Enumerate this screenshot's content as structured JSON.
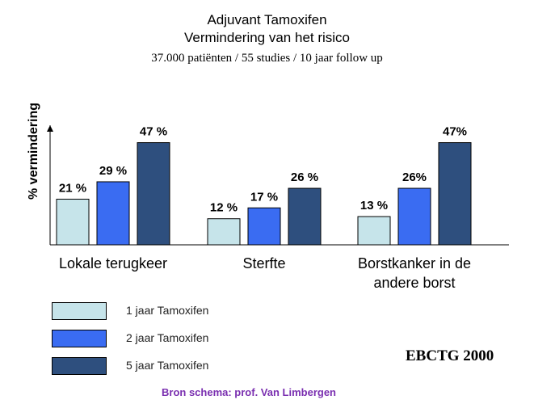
{
  "header": {
    "title_line1": "Adjuvant Tamoxifen",
    "title_line2": "Vermindering van het risico",
    "subtitle": "37.000 patiënten / 55 studies / 10 jaar follow up"
  },
  "chart_data": {
    "type": "bar",
    "ylabel": "% vermindering",
    "xlabel": "",
    "ylim": [
      0,
      55
    ],
    "grid": false,
    "legend": "bottom-left",
    "categories": [
      [
        "Lokale terugkeer"
      ],
      [
        "Sterfte"
      ],
      [
        "Borstkanker in de",
        "andere borst"
      ]
    ],
    "series": [
      {
        "name": "1 jaar Tamoxifen",
        "color": "#c6e4ea",
        "values": [
          21,
          12,
          13
        ],
        "labels": [
          "21 %",
          "12 %",
          "13 %"
        ]
      },
      {
        "name": "2 jaar Tamoxifen",
        "color": "#3a6cf2",
        "values": [
          29,
          17,
          26
        ],
        "labels": [
          "29 %",
          "17 %",
          "26%"
        ]
      },
      {
        "name": "5 jaar Tamoxifen",
        "color": "#2e4f7e",
        "values": [
          47,
          26,
          47
        ],
        "labels": [
          "47 %",
          "26 %",
          "47%"
        ]
      }
    ]
  },
  "footer": {
    "stamp": "EBCTG 2000",
    "source": "Bron schema: prof. Van Limbergen"
  }
}
